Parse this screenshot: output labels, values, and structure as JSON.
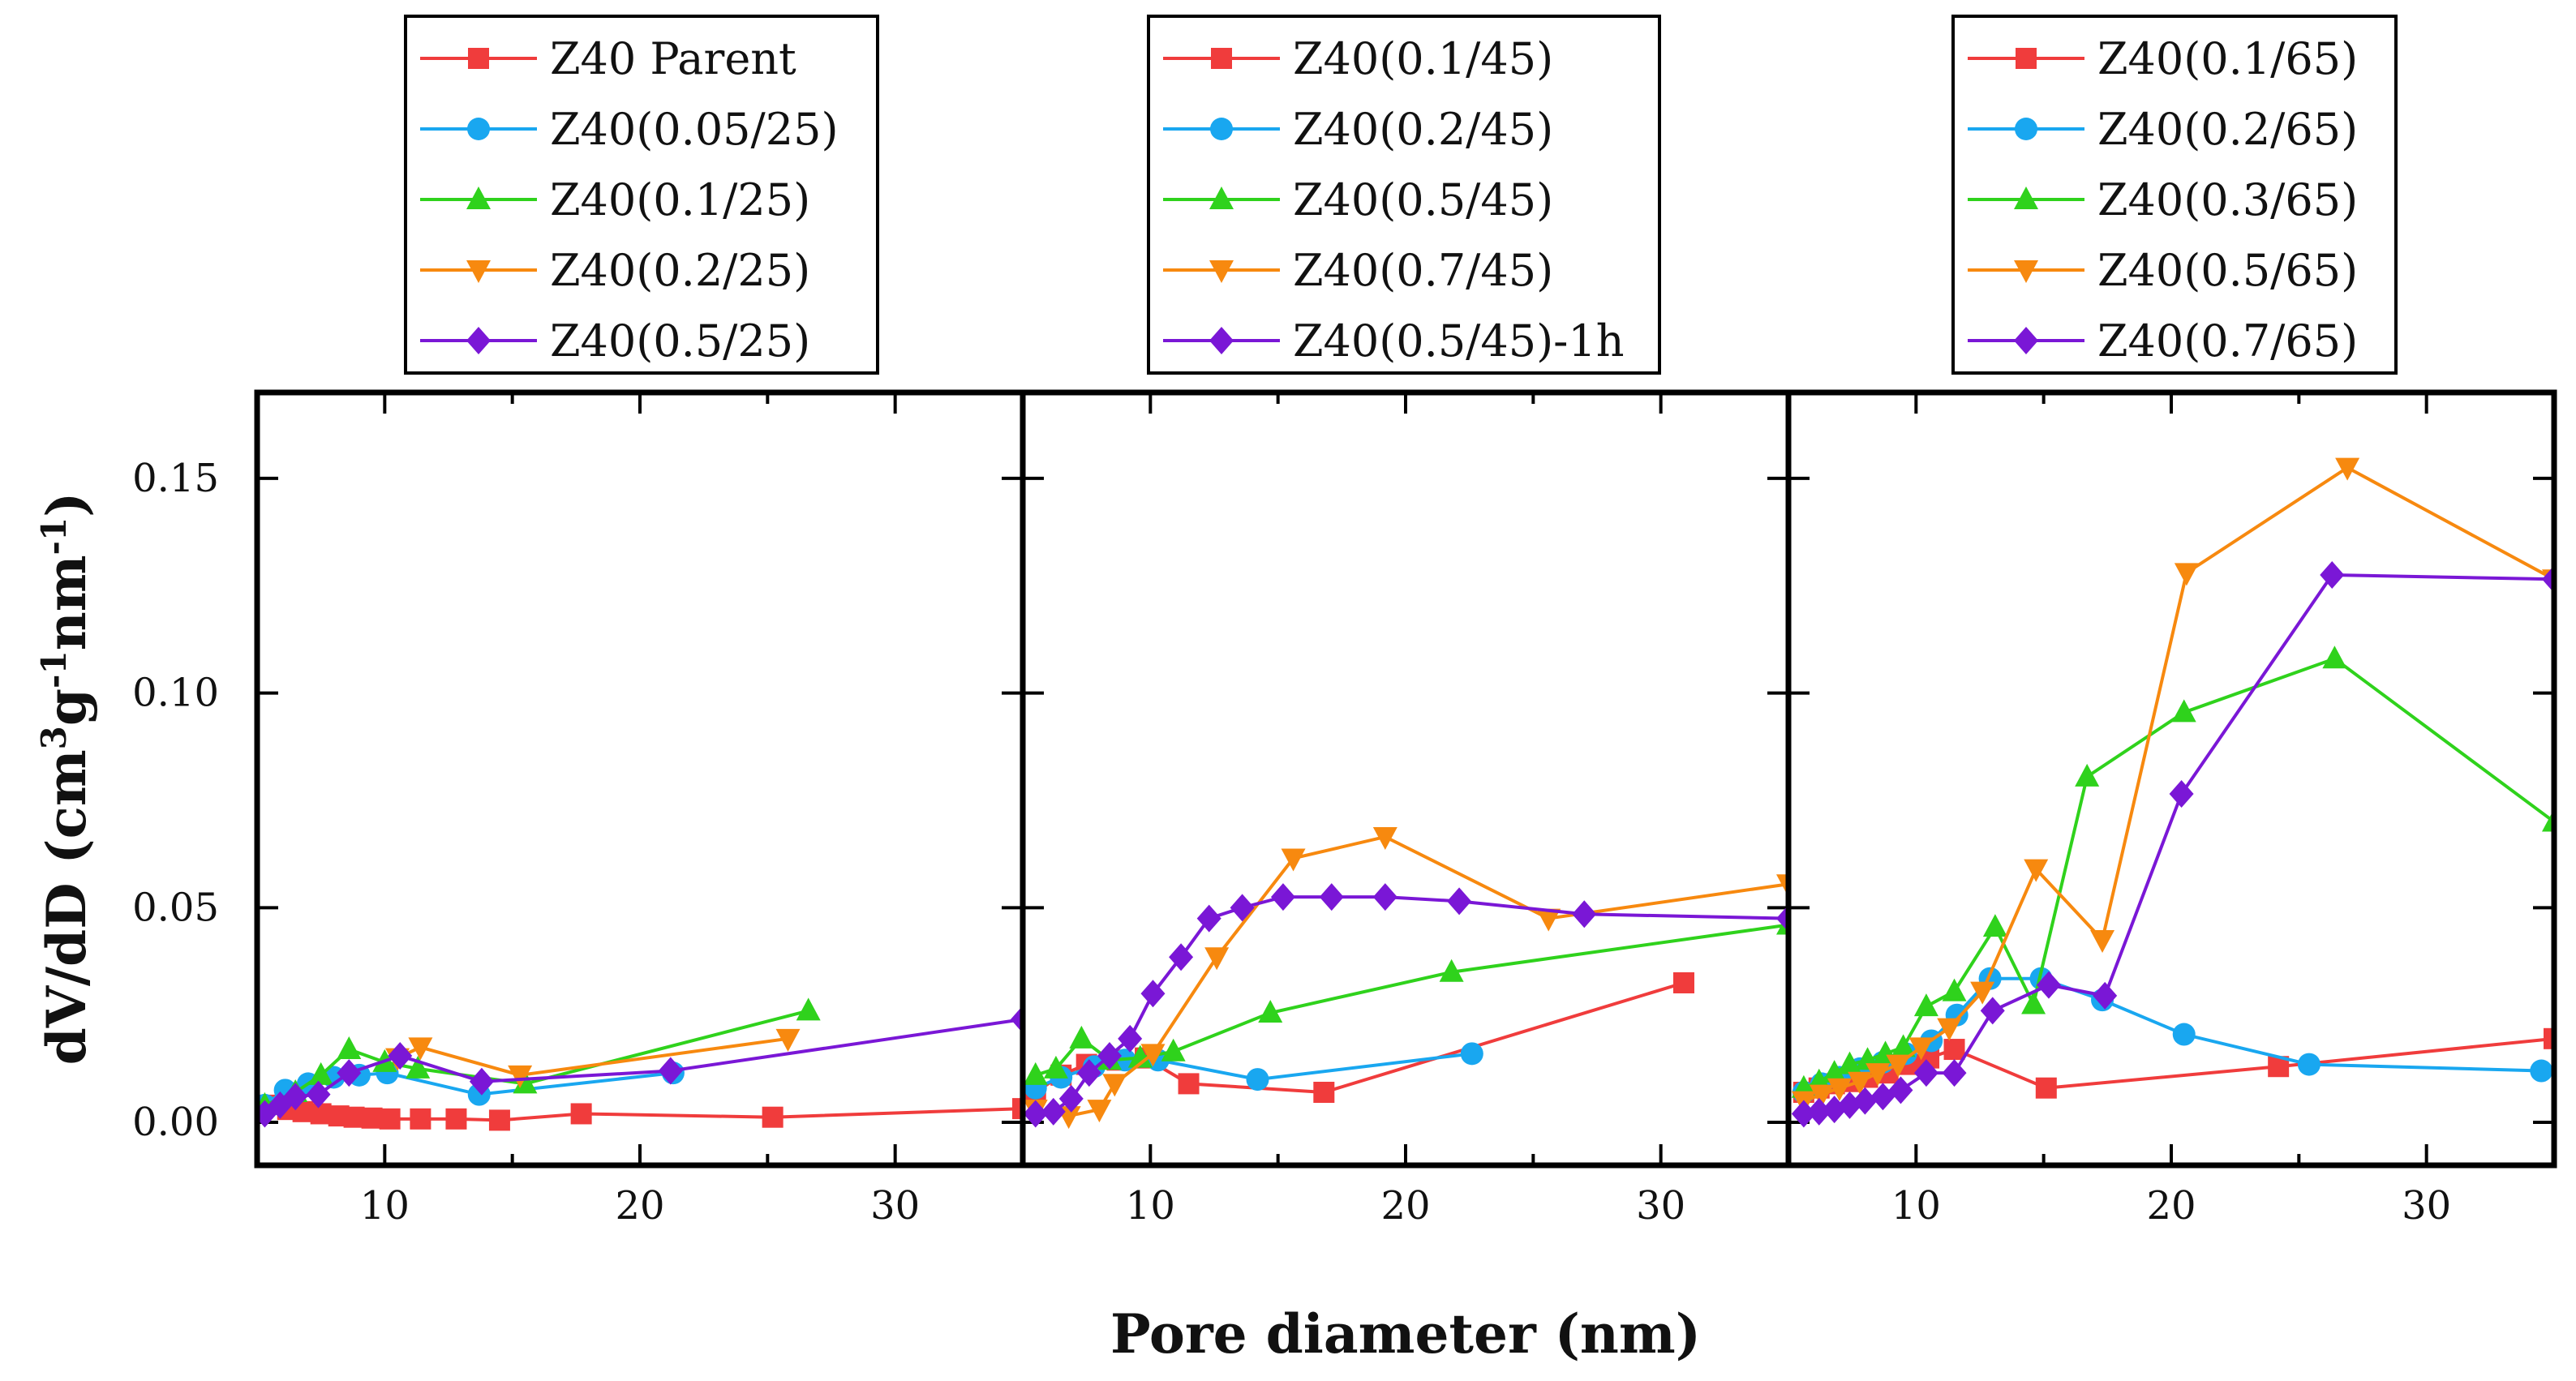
{
  "chart_data": {
    "type": "line",
    "ylabel_main": "dV/dD (cm",
    "ylabel_sup1": "3",
    "ylabel_mid1": "g",
    "ylabel_sup2": "-1",
    "ylabel_mid2": "nm",
    "ylabel_sup3": "-1",
    "ylabel_end": ")",
    "xlabel": "Pore diameter (nm)",
    "xlim": [
      5,
      35
    ],
    "ylim": [
      -0.01,
      0.17
    ],
    "yticks": [
      "0.00",
      "0.05",
      "0.10",
      "0.15"
    ],
    "ytick_values": [
      0,
      0.05,
      0.1,
      0.15
    ],
    "xticks": [
      "10",
      "20",
      "30"
    ],
    "xtick_values": [
      10,
      20,
      30
    ],
    "colors": {
      "red": "#f03c3c",
      "blue": "#19a7f0",
      "green": "#2fd21c",
      "orange": "#f7890f",
      "purple": "#7a17d6"
    },
    "panels": [
      {
        "series": [
          {
            "name": "Z40 Parent",
            "color": "#f03c3c",
            "marker": "square",
            "x": [
              5.3,
              6.2,
              6.8,
              7.5,
              8.2,
              8.8,
              9.5,
              10.2,
              11.4,
              12.8,
              14.5,
              17.7,
              25.2,
              35.0
            ],
            "y": [
              0.004,
              0.003,
              0.0025,
              0.002,
              0.0015,
              0.0012,
              0.001,
              0.0008,
              0.0008,
              0.0008,
              0.0005,
              0.002,
              0.0012,
              0.0032
            ]
          },
          {
            "name": "Z40(0.05/25)",
            "color": "#19a7f0",
            "marker": "circle",
            "x": [
              5.3,
              6.1,
              7.0,
              8.0,
              9.0,
              10.1,
              13.7,
              21.3
            ],
            "y": [
              0.004,
              0.0075,
              0.009,
              0.0105,
              0.011,
              0.0115,
              0.0065,
              0.0115
            ]
          },
          {
            "name": "Z40(0.1/25)",
            "color": "#2fd21c",
            "marker": "triangle-up",
            "x": [
              5.3,
              6.5,
              7.5,
              8.6,
              10.0,
              11.3,
              15.5,
              26.6
            ],
            "y": [
              0.004,
              0.007,
              0.011,
              0.017,
              0.014,
              0.0125,
              0.009,
              0.026
            ]
          },
          {
            "name": "Z40(0.2/25)",
            "color": "#f7890f",
            "marker": "triangle-down",
            "x": [
              10.5,
              11.4,
              15.3,
              25.8
            ],
            "y": [
              0.015,
              0.0175,
              0.011,
              0.0195
            ]
          },
          {
            "name": "Z40(0.5/25)",
            "color": "#7a17d6",
            "marker": "diamond",
            "x": [
              5.3,
              5.9,
              6.5,
              7.4,
              8.6,
              10.6,
              13.8,
              21.2,
              35.0
            ],
            "y": [
              0.002,
              0.004,
              0.006,
              0.0065,
              0.0115,
              0.0155,
              0.0095,
              0.012,
              0.024
            ]
          }
        ]
      },
      {
        "series": [
          {
            "name": "Z40(0.1/45)",
            "color": "#f03c3c",
            "marker": "square",
            "x": [
              5.5,
              6.5,
              7.5,
              8.7,
              9.8,
              11.5,
              16.8,
              30.9
            ],
            "y": [
              0.007,
              0.011,
              0.0135,
              0.0145,
              0.015,
              0.009,
              0.007,
              0.0325
            ]
          },
          {
            "name": "Z40(0.2/45)",
            "color": "#19a7f0",
            "marker": "circle",
            "x": [
              5.5,
              6.5,
              7.8,
              9.0,
              10.3,
              14.2,
              22.6
            ],
            "y": [
              0.008,
              0.0105,
              0.013,
              0.0145,
              0.0145,
              0.01,
              0.016
            ]
          },
          {
            "name": "Z40(0.5/45)",
            "color": "#2fd21c",
            "marker": "triangle-up",
            "x": [
              5.5,
              6.3,
              7.3,
              8.4,
              9.6,
              10.9,
              14.7,
              21.8,
              35.0
            ],
            "y": [
              0.011,
              0.0125,
              0.0195,
              0.0145,
              0.015,
              0.0165,
              0.0255,
              0.035,
              0.046
            ]
          },
          {
            "name": "Z40(0.7/45)",
            "color": "#f7890f",
            "marker": "triangle-down",
            "x": [
              5.5,
              6.8,
              8.0,
              8.6,
              10.1,
              12.6,
              15.6,
              19.2,
              25.6,
              35.0
            ],
            "y": [
              0.003,
              0.0015,
              0.003,
              0.009,
              0.016,
              0.0385,
              0.0615,
              0.0665,
              0.0475,
              0.0555
            ]
          },
          {
            "name": "Z40(0.5/45)-1h",
            "color": "#7a17d6",
            "marker": "diamond",
            "x": [
              5.5,
              6.2,
              6.9,
              7.6,
              8.4,
              9.2,
              10.1,
              11.2,
              12.3,
              13.6,
              15.2,
              17.1,
              19.2,
              22.1,
              27.0,
              35.0
            ],
            "y": [
              0.002,
              0.0025,
              0.0055,
              0.0115,
              0.0155,
              0.0195,
              0.03,
              0.0385,
              0.0475,
              0.05,
              0.0525,
              0.0525,
              0.0525,
              0.0515,
              0.0485,
              0.0475
            ]
          }
        ]
      },
      {
        "series": [
          {
            "name": "Z40(0.1/65)",
            "color": "#f03c3c",
            "marker": "square",
            "x": [
              5.6,
              6.2,
              6.8,
              7.4,
              8.1,
              8.9,
              9.7,
              10.5,
              11.5,
              15.1,
              24.2,
              35.0
            ],
            "y": [
              0.007,
              0.008,
              0.009,
              0.0095,
              0.0105,
              0.0115,
              0.0135,
              0.015,
              0.017,
              0.008,
              0.013,
              0.0195
            ]
          },
          {
            "name": "Z40(0.2/65)",
            "color": "#19a7f0",
            "marker": "circle",
            "x": [
              5.6,
              6.3,
              7.0,
              7.8,
              8.7,
              9.6,
              10.6,
              11.6,
              12.9,
              14.9,
              17.3,
              20.5,
              25.4,
              34.5
            ],
            "y": [
              0.007,
              0.009,
              0.0105,
              0.0125,
              0.014,
              0.016,
              0.019,
              0.025,
              0.0335,
              0.0335,
              0.0285,
              0.0205,
              0.0135,
              0.012
            ]
          },
          {
            "name": "Z40(0.3/65)",
            "color": "#2fd21c",
            "marker": "triangle-up",
            "x": [
              5.6,
              6.2,
              6.8,
              7.4,
              8.1,
              8.8,
              9.5,
              10.4,
              11.5,
              13.1,
              14.6,
              16.7,
              20.5,
              26.4,
              35.0
            ],
            "y": [
              0.008,
              0.0095,
              0.0115,
              0.0135,
              0.0145,
              0.016,
              0.0175,
              0.027,
              0.0305,
              0.0455,
              0.0275,
              0.0805,
              0.0955,
              0.108,
              0.07
            ]
          },
          {
            "name": "Z40(0.5/65)",
            "color": "#f7890f",
            "marker": "triangle-down",
            "x": [
              5.6,
              6.3,
              7.0,
              7.8,
              8.5,
              9.3,
              10.2,
              11.3,
              12.6,
              14.7,
              17.3,
              20.6,
              26.9,
              35.0
            ],
            "y": [
              0.005,
              0.0065,
              0.008,
              0.0095,
              0.0115,
              0.0135,
              0.0175,
              0.022,
              0.0305,
              0.059,
              0.0425,
              0.128,
              0.1525,
              0.1265
            ]
          },
          {
            "name": "Z40(0.7/65)",
            "color": "#7a17d6",
            "marker": "diamond",
            "x": [
              5.6,
              6.2,
              6.8,
              7.4,
              8.0,
              8.7,
              9.4,
              10.4,
              11.5,
              13.0,
              15.2,
              17.4,
              20.4,
              26.3,
              35.0
            ],
            "y": [
              0.002,
              0.0025,
              0.003,
              0.004,
              0.005,
              0.006,
              0.0075,
              0.0115,
              0.0115,
              0.026,
              0.032,
              0.0295,
              0.0765,
              0.1275,
              0.1265
            ]
          }
        ]
      }
    ]
  }
}
